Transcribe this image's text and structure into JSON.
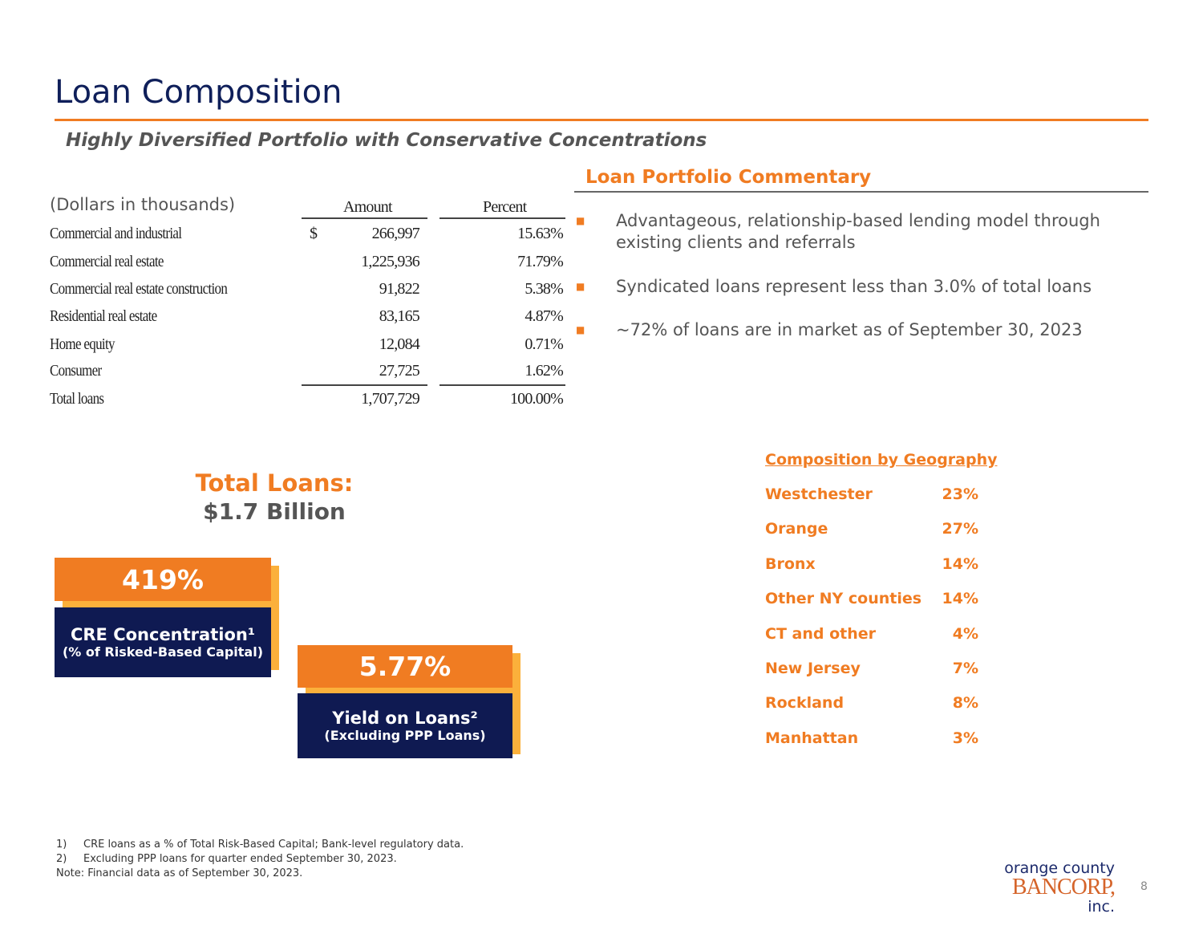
{
  "title": "Loan Composition",
  "subtitle": "Highly Diversified Portfolio with Conservative Concentrations",
  "table": {
    "units": "(Dollars in thousands)",
    "headers": [
      "Amount",
      "Percent"
    ],
    "currency": "$",
    "rows": [
      {
        "label": "Commercial and industrial",
        "amount": "266,997",
        "percent": "15.63%"
      },
      {
        "label": "Commercial real estate",
        "amount": "1,225,936",
        "percent": "71.79%"
      },
      {
        "label": "Commercial real estate construction",
        "amount": "91,822",
        "percent": "5.38%"
      },
      {
        "label": "Residential real estate",
        "amount": "83,165",
        "percent": "4.87%"
      },
      {
        "label": "Home equity",
        "amount": "12,084",
        "percent": "0.71%"
      },
      {
        "label": "Consumer",
        "amount": "27,725",
        "percent": "1.62%"
      },
      {
        "label": "Total loans",
        "amount": "1,707,729",
        "percent": "100.00%"
      }
    ]
  },
  "commentary": {
    "heading": "Loan Portfolio Commentary",
    "bullets": [
      "Advantageous, relationship-based lending model through existing clients and referrals",
      "Syndicated loans represent less than 3.0% of total loans",
      "~72% of loans are in market as of September 30, 2023"
    ]
  },
  "total_loans": {
    "label": "Total Loans:",
    "value": "$1.7 Billion"
  },
  "kpis": [
    {
      "value": "419%",
      "label": "CRE Concentration¹",
      "sublabel": "(% of Risked-Based Capital)"
    },
    {
      "value": "5.77%",
      "label": "Yield on Loans²",
      "sublabel": "(Excluding PPP Loans)"
    }
  ],
  "geography": {
    "heading": "Composition by Geography",
    "rows": [
      {
        "region": "Westchester",
        "pct": "23%"
      },
      {
        "region": "Orange",
        "pct": "27%"
      },
      {
        "region": "Bronx",
        "pct": "14%"
      },
      {
        "region": "Other NY counties",
        "pct": "14%"
      },
      {
        "region": "CT and other",
        "pct": "4%"
      },
      {
        "region": "New Jersey",
        "pct": "7%"
      },
      {
        "region": "Rockland",
        "pct": "8%"
      },
      {
        "region": "Manhattan",
        "pct": "3%"
      }
    ]
  },
  "footnotes": [
    {
      "num": "1)",
      "text": "CRE loans as a % of Total Risk-Based Capital; Bank-level regulatory data."
    },
    {
      "num": "2)",
      "text": "Excluding PPP loans for quarter ended September 30, 2023."
    }
  ],
  "note": "Note: Financial data as of September 30, 2023.",
  "logo": {
    "line1": "orange county",
    "line2": "BANCORP,",
    "line3": "inc."
  },
  "page_number": "8",
  "colors": {
    "accent": "#f07c22",
    "navy": "#0f1a52",
    "gold": "#fbb03b"
  }
}
